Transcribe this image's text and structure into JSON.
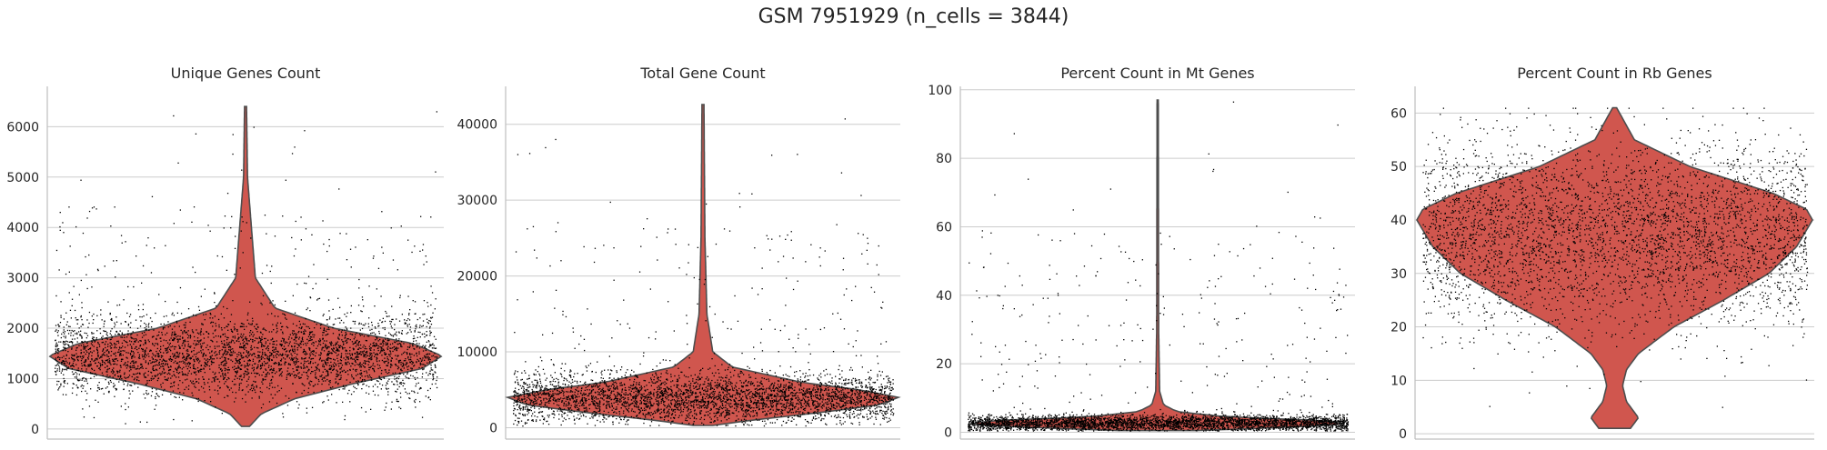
{
  "figure": {
    "suptitle": "GSM 7951929 (n_cells = 3844)",
    "colors": {
      "violin": "#d0564e",
      "violin_edge": "#4d4d4d",
      "points": "#000000",
      "grid": "#cccccc",
      "spine": "#bfbfbf",
      "text": "#262626"
    }
  },
  "chart_data": [
    {
      "type": "violin",
      "title": "Unique Genes Count",
      "ylim": [
        -200,
        6800
      ],
      "yticks": [
        0,
        1000,
        2000,
        3000,
        4000,
        5000,
        6000
      ],
      "ytick_labels": [
        "0",
        "1000",
        "2000",
        "3000",
        "4000",
        "5000",
        "6000"
      ],
      "grid": true,
      "n_points": 3844,
      "distribution": {
        "min": 50,
        "max": 6400,
        "median": 1450,
        "q1": 1200,
        "q3": 1750
      },
      "violin_profile": {
        "values": [
          50,
          300,
          600,
          900,
          1200,
          1450,
          1700,
          2000,
          2400,
          3000,
          4000,
          5000,
          6400
        ],
        "widths": [
          0.02,
          0.08,
          0.25,
          0.55,
          0.9,
          1.0,
          0.85,
          0.45,
          0.15,
          0.05,
          0.03,
          0.01,
          0.005
        ]
      }
    },
    {
      "type": "violin",
      "title": "Total Gene Count",
      "ylim": [
        -1500,
        45000
      ],
      "yticks": [
        0,
        10000,
        20000,
        30000,
        40000
      ],
      "ytick_labels": [
        "0",
        "10000",
        "20000",
        "30000",
        "40000"
      ],
      "grid": true,
      "n_points": 3844,
      "distribution": {
        "min": 300,
        "max": 42600,
        "median": 4000,
        "q1": 3000,
        "q3": 5200
      },
      "violin_profile": {
        "values": [
          300,
          1000,
          2000,
          3000,
          4000,
          5000,
          6000,
          8000,
          10000,
          15000,
          25000,
          42600
        ],
        "widths": [
          0.05,
          0.25,
          0.6,
          0.9,
          1.0,
          0.8,
          0.5,
          0.15,
          0.05,
          0.02,
          0.01,
          0.005
        ]
      }
    },
    {
      "type": "violin",
      "title": "Percent Count in Mt Genes",
      "ylim": [
        -2,
        101
      ],
      "yticks": [
        0,
        20,
        40,
        60,
        80,
        100
      ],
      "ytick_labels": [
        "0",
        "20",
        "40",
        "60",
        "80",
        "100"
      ],
      "grid": true,
      "n_points": 3844,
      "distribution": {
        "min": 0.5,
        "max": 97,
        "median": 2.8,
        "q1": 2.0,
        "q3": 3.6
      },
      "violin_profile": {
        "values": [
          0.5,
          1.5,
          2.5,
          3.5,
          4.5,
          6,
          8,
          12,
          30,
          97
        ],
        "widths": [
          0.2,
          0.7,
          1.0,
          0.8,
          0.35,
          0.1,
          0.03,
          0.01,
          0.005,
          0.003
        ]
      }
    },
    {
      "type": "violin",
      "title": "Percent Count in Rb Genes",
      "ylim": [
        -1,
        65
      ],
      "yticks": [
        0,
        10,
        20,
        30,
        40,
        50,
        60
      ],
      "ytick_labels": [
        "0",
        "10",
        "20",
        "30",
        "40",
        "50",
        "60"
      ],
      "grid": true,
      "n_points": 3844,
      "distribution": {
        "min": 1,
        "max": 61,
        "median": 37,
        "q1": 30,
        "q3": 42
      },
      "violin_profile": {
        "values": [
          1,
          3,
          6,
          9,
          12,
          15,
          20,
          25,
          30,
          35,
          40,
          42,
          45,
          50,
          55,
          61
        ],
        "widths": [
          0.08,
          0.12,
          0.06,
          0.04,
          0.06,
          0.12,
          0.3,
          0.55,
          0.78,
          0.92,
          1.0,
          0.97,
          0.8,
          0.38,
          0.1,
          0.01
        ]
      }
    }
  ]
}
